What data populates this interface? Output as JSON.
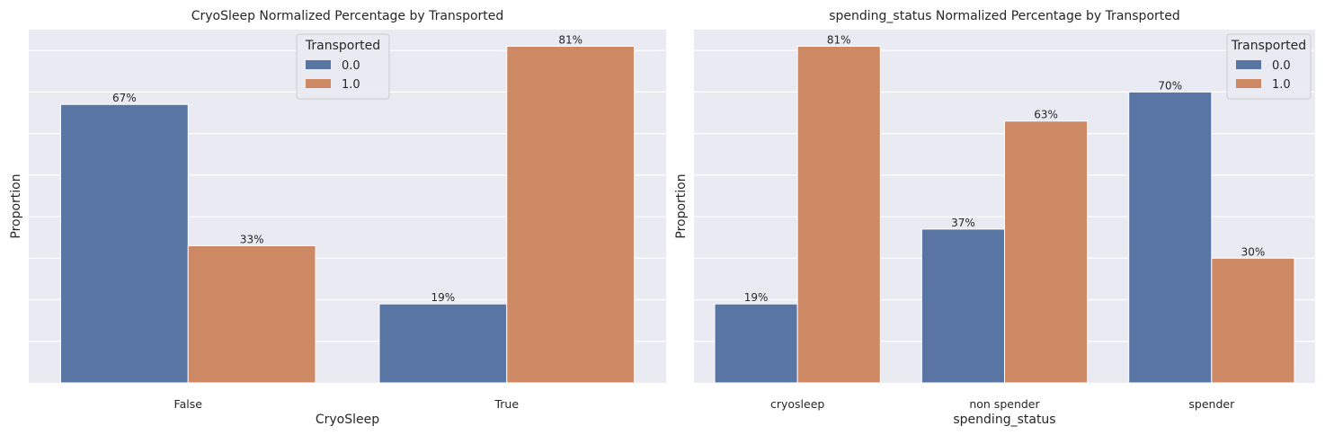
{
  "colors": {
    "series_0": "#5975a4",
    "series_1": "#cc8963",
    "background": "#eaeaf2",
    "grid": "#ffffff"
  },
  "chart_data": [
    {
      "type": "bar",
      "title": "CryoSleep Normalized Percentage by Transported",
      "xlabel": "CryoSleep",
      "ylabel": "Proportion",
      "categories": [
        "False",
        "True"
      ],
      "ylim": [
        0,
        0.85
      ],
      "grid": true,
      "legend": {
        "title": "Transported",
        "placement": "top-center"
      },
      "series": [
        {
          "name": "0.0",
          "values": [
            0.67,
            0.19
          ],
          "labels": [
            "67%",
            "19%"
          ]
        },
        {
          "name": "1.0",
          "values": [
            0.33,
            0.81
          ],
          "labels": [
            "33%",
            "81%"
          ]
        }
      ]
    },
    {
      "type": "bar",
      "title": "spending_status Normalized Percentage by Transported",
      "xlabel": "spending_status",
      "ylabel": "Proportion",
      "categories": [
        "cryosleep",
        "non spender",
        "spender"
      ],
      "ylim": [
        0,
        0.85
      ],
      "grid": true,
      "legend": {
        "title": "Transported",
        "placement": "top-right"
      },
      "series": [
        {
          "name": "0.0",
          "values": [
            0.19,
            0.37,
            0.7
          ],
          "labels": [
            "19%",
            "37%",
            "70%"
          ]
        },
        {
          "name": "1.0",
          "values": [
            0.81,
            0.63,
            0.3
          ],
          "labels": [
            "81%",
            "63%",
            "30%"
          ]
        }
      ]
    }
  ]
}
